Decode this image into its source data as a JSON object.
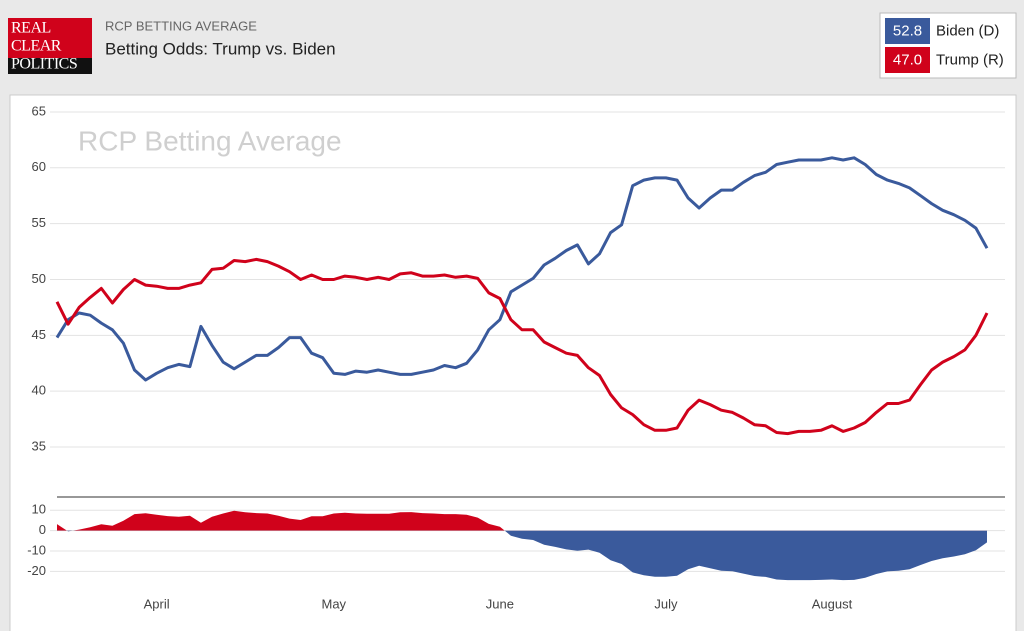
{
  "header": {
    "logo": [
      "REAL",
      "CLEAR",
      "POLITICS"
    ],
    "kicker": "RCP BETTING AVERAGE",
    "title": "Betting Odds: Trump vs. Biden"
  },
  "chart_data": [
    {
      "type": "line",
      "title": "RCP Betting Average",
      "ylim": [
        31,
        66
      ],
      "yticks": [
        35,
        40,
        45,
        50,
        55,
        60,
        65
      ],
      "grid": true,
      "series": [
        {
          "name": "Biden (D)",
          "color": "#3a5a9c",
          "current": {
            "value": 52.8,
            "label": "52.8"
          },
          "values": [
            44.8,
            46.4,
            47.0,
            46.8,
            46.1,
            45.5,
            44.3,
            41.9,
            41.0,
            41.6,
            42.1,
            42.4,
            42.2,
            45.8,
            44.1,
            42.6,
            42.0,
            42.6,
            43.2,
            43.2,
            43.9,
            44.8,
            44.8,
            43.4,
            43.0,
            41.6,
            41.5,
            41.8,
            41.7,
            41.9,
            41.7,
            41.5,
            41.5,
            41.7,
            41.9,
            42.3,
            42.1,
            42.5,
            43.7,
            45.5,
            46.4,
            48.9,
            49.5,
            50.1,
            51.3,
            51.9,
            52.6,
            53.1,
            51.4,
            52.3,
            54.2,
            54.9,
            58.4,
            58.9,
            59.1,
            59.1,
            58.9,
            57.3,
            56.4,
            57.3,
            58.0,
            58.0,
            58.7,
            59.3,
            59.6,
            60.3,
            60.5,
            60.7,
            60.7,
            60.7,
            60.9,
            60.7,
            60.9,
            60.3,
            59.4,
            58.9,
            58.6,
            58.2,
            57.5,
            56.8,
            56.2,
            55.8,
            55.3,
            54.6,
            52.8
          ]
        },
        {
          "name": "Trump (R)",
          "color": "#d0021b",
          "current": {
            "value": 47.0,
            "label": "47.0"
          },
          "values": [
            48.0,
            46.0,
            47.5,
            48.4,
            49.2,
            47.9,
            49.1,
            50.0,
            49.5,
            49.4,
            49.2,
            49.2,
            49.5,
            49.7,
            50.9,
            51.0,
            51.7,
            51.6,
            51.8,
            51.6,
            51.2,
            50.7,
            50.0,
            50.4,
            50.0,
            50.0,
            50.3,
            50.2,
            50.0,
            50.2,
            50.0,
            50.5,
            50.6,
            50.3,
            50.3,
            50.4,
            50.2,
            50.3,
            50.1,
            48.8,
            48.3,
            46.4,
            45.5,
            45.5,
            44.4,
            43.9,
            43.4,
            43.2,
            42.1,
            41.4,
            39.7,
            38.5,
            37.9,
            37.0,
            36.5,
            36.5,
            36.7,
            38.3,
            39.2,
            38.8,
            38.3,
            38.1,
            37.6,
            37.0,
            36.9,
            36.3,
            36.2,
            36.4,
            36.4,
            36.5,
            36.9,
            36.4,
            36.7,
            37.2,
            38.1,
            38.9,
            38.9,
            39.2,
            40.6,
            41.9,
            42.6,
            43.1,
            43.7,
            45.0,
            47.0
          ]
        }
      ]
    },
    {
      "type": "area",
      "ylim": [
        -29,
        16
      ],
      "yticks": [
        10,
        0,
        -10,
        -20
      ],
      "grid": true,
      "color_above": "#d0021b",
      "color_below": "#3a5a9c",
      "categories": [
        null,
        null,
        null,
        null,
        null,
        null,
        null,
        null,
        null,
        "April",
        null,
        null,
        null,
        null,
        null,
        null,
        null,
        null,
        null,
        null,
        null,
        null,
        null,
        null,
        null,
        "May",
        null,
        null,
        null,
        null,
        null,
        null,
        null,
        null,
        null,
        null,
        null,
        null,
        null,
        null,
        "June",
        null,
        null,
        null,
        null,
        null,
        null,
        null,
        null,
        null,
        null,
        null,
        null,
        null,
        null,
        "July",
        null,
        null,
        null,
        null,
        null,
        null,
        null,
        null,
        null,
        null,
        null,
        null,
        null,
        null,
        "August",
        null,
        null,
        null,
        null,
        null,
        null,
        null,
        null,
        null,
        null,
        null,
        null,
        null,
        null
      ],
      "values": [
        3.2,
        -0.4,
        0.5,
        1.6,
        3.1,
        2.4,
        4.8,
        8.1,
        8.5,
        7.8,
        7.1,
        6.8,
        7.3,
        3.9,
        6.8,
        8.4,
        9.7,
        9.0,
        8.6,
        8.4,
        7.3,
        5.9,
        5.2,
        7.0,
        7.0,
        8.4,
        8.8,
        8.4,
        8.3,
        8.3,
        8.3,
        9.0,
        9.1,
        8.6,
        8.4,
        8.1,
        8.1,
        7.8,
        6.4,
        3.3,
        1.9,
        -2.5,
        -4.0,
        -4.6,
        -6.9,
        -8.0,
        -9.2,
        -9.9,
        -9.3,
        -10.9,
        -14.5,
        -16.4,
        -20.5,
        -21.9,
        -22.6,
        -22.6,
        -22.2,
        -19.0,
        -17.2,
        -18.5,
        -19.7,
        -19.9,
        -21.1,
        -22.3,
        -22.7,
        -24.0,
        -24.3,
        -24.3,
        -24.3,
        -24.2,
        -24.0,
        -24.3,
        -24.2,
        -23.1,
        -21.3,
        -20.0,
        -19.7,
        -19.0,
        -16.9,
        -14.9,
        -13.6,
        -12.7,
        -11.6,
        -9.6,
        -5.8
      ]
    }
  ]
}
